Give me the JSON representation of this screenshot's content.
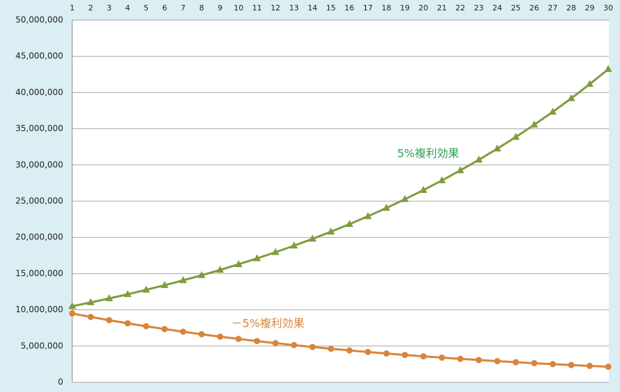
{
  "chart_data": {
    "type": "line",
    "categories": [
      "1",
      "2",
      "3",
      "4",
      "5",
      "6",
      "7",
      "8",
      "9",
      "10",
      "11",
      "12",
      "13",
      "14",
      "15",
      "16",
      "17",
      "18",
      "19",
      "20",
      "21",
      "22",
      "23",
      "24",
      "25",
      "26",
      "27",
      "28",
      "29",
      "30"
    ],
    "series": [
      {
        "name": "5%複利効果",
        "color": "#7f9c3e",
        "marker": "triangle",
        "values": [
          10500000,
          11025000,
          11576250,
          12155063,
          12762816,
          13400956,
          14071004,
          14774554,
          15513282,
          16288946,
          17103394,
          17958563,
          18856491,
          19799316,
          20789282,
          21828746,
          22920183,
          24066192,
          25269502,
          26532977,
          27859626,
          29252607,
          30715238,
          32250999,
          33863549,
          35556727,
          37334563,
          39201291,
          41161356,
          43219424
        ]
      },
      {
        "name": "－5%複利効果",
        "color": "#d9843a",
        "marker": "circle",
        "values": [
          9500000,
          9025000,
          8573750,
          8145063,
          7737809,
          7350919,
          6983373,
          6634204,
          6302494,
          5987369,
          5688001,
          5403601,
          5133421,
          4876750,
          4632912,
          4401267,
          4181203,
          3972143,
          3773536,
          3584859,
          3405616,
          3235335,
          3073569,
          2919890,
          2773896,
          2635201,
          2503441,
          2378269,
          2259355,
          2146388
        ]
      }
    ],
    "ylim": [
      0,
      50000000
    ],
    "yticks": [
      0,
      {
        "value": 5000000,
        "label": "5,000,000"
      },
      {
        "value": 10000000,
        "label": "10,000,000"
      },
      {
        "value": 15000000,
        "label": "15,000,000"
      },
      {
        "value": 20000000,
        "label": "20,000,000"
      },
      {
        "value": 25000000,
        "label": "25,000,000"
      },
      {
        "value": 30000000,
        "label": "30,000,000"
      },
      {
        "value": 35000000,
        "label": "35,000,000"
      },
      {
        "value": 40000000,
        "label": "40,000,000"
      },
      {
        "value": 45000000,
        "label": "45,000,000"
      },
      {
        "value": 50000000,
        "label": "50,000,000"
      }
    ],
    "grid": true
  }
}
